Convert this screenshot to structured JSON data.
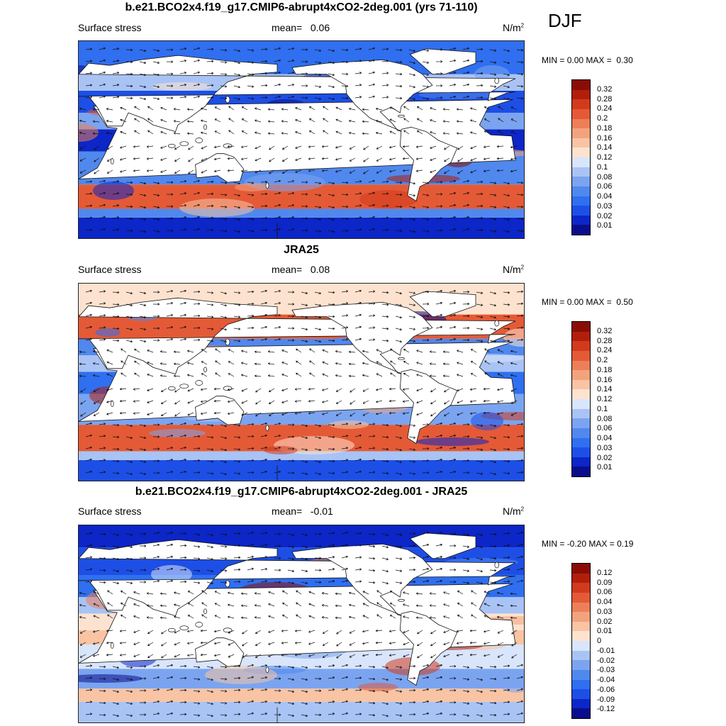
{
  "season": "DJF",
  "panels": [
    {
      "id": "model",
      "title": "b.e21.BCO2x4.f19_g17.CMIP6-abrupt4xCO2-2deg.001 (yrs 71-110)",
      "field": "Surface stress",
      "mean_label": "mean=",
      "mean_value": "0.06",
      "units_base": "N/m",
      "units_exp": "2",
      "min_label": "MIN =",
      "min_value": "0.00",
      "max_label": "MAX =",
      "max_value": "0.30",
      "levels": [
        "0.01",
        "0.02",
        "0.03",
        "0.04",
        "0.06",
        "0.08",
        "0.1",
        "0.12",
        "0.14",
        "0.16",
        "0.18",
        "0.2",
        "0.24",
        "0.28",
        "0.32"
      ],
      "colors": [
        "#0a0d8c",
        "#0c26c8",
        "#1d4fe6",
        "#2f6ff0",
        "#5088ee",
        "#7ba4f0",
        "#a9c3f5",
        "#d8e5fb",
        "#fde3cf",
        "#f8c4a4",
        "#f2a37e",
        "#ec7f59",
        "#e45a36",
        "#d23a1d",
        "#b11f0c",
        "#8a0c05"
      ]
    },
    {
      "id": "obs",
      "title": "JRA25",
      "field": "Surface stress",
      "mean_label": "mean=",
      "mean_value": "0.08",
      "units_base": "N/m",
      "units_exp": "2",
      "min_label": "MIN =",
      "min_value": "0.00",
      "max_label": "MAX =",
      "max_value": "0.50",
      "levels": [
        "0.01",
        "0.02",
        "0.03",
        "0.04",
        "0.06",
        "0.08",
        "0.1",
        "0.12",
        "0.14",
        "0.16",
        "0.18",
        "0.2",
        "0.24",
        "0.28",
        "0.32"
      ],
      "colors": [
        "#0a0d8c",
        "#0c26c8",
        "#1d4fe6",
        "#2f6ff0",
        "#5088ee",
        "#7ba4f0",
        "#a9c3f5",
        "#d8e5fb",
        "#fde3cf",
        "#f8c4a4",
        "#f2a37e",
        "#ec7f59",
        "#e45a36",
        "#d23a1d",
        "#b11f0c",
        "#8a0c05"
      ]
    },
    {
      "id": "diff",
      "title": "b.e21.BCO2x4.f19_g17.CMIP6-abrupt4xCO2-2deg.001 - JRA25",
      "field": "Surface stress",
      "mean_label": "mean=",
      "mean_value": "-0.01",
      "units_base": "N/m",
      "units_exp": "2",
      "min_label": "MIN =",
      "min_value": "-0.20",
      "max_label": "MAX =",
      "max_value": "0.19",
      "levels": [
        "-0.12",
        "-0.09",
        "-0.06",
        "-0.04",
        "-0.03",
        "-0.02",
        "-0.01",
        "0",
        "0.01",
        "0.02",
        "0.03",
        "0.04",
        "0.06",
        "0.09",
        "0.12"
      ],
      "colors": [
        "#0a0d8c",
        "#0c26c8",
        "#1d4fe6",
        "#2f6ff0",
        "#5088ee",
        "#7ba4f0",
        "#a9c3f5",
        "#d8e5fb",
        "#fde3cf",
        "#f8c4a4",
        "#f2a37e",
        "#ec7f59",
        "#e45a36",
        "#d23a1d",
        "#b11f0c",
        "#8a0c05"
      ]
    }
  ]
}
